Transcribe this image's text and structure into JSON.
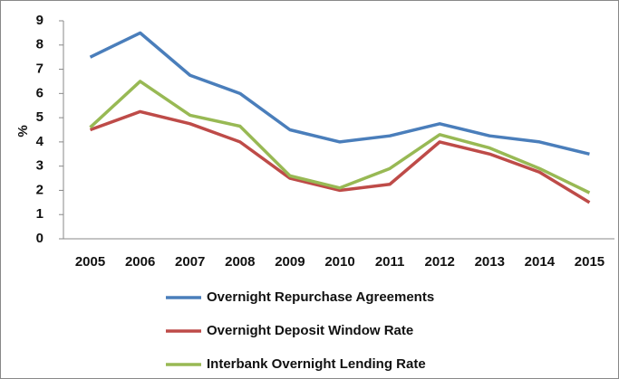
{
  "chart_data": {
    "type": "line",
    "ylabel": "%",
    "categories": [
      "2005",
      "2006",
      "2007",
      "2008",
      "2009",
      "2010",
      "2011",
      "2012",
      "2013",
      "2014",
      "2015"
    ],
    "series": [
      {
        "name": "Overnight Repurchase Agreements",
        "color": "#4a7ebb",
        "values": [
          7.5,
          8.5,
          6.75,
          6.0,
          4.5,
          4.0,
          4.25,
          4.75,
          4.25,
          4.0,
          3.5
        ]
      },
      {
        "name": "Overnight Deposit Window Rate",
        "color": "#be4b48",
        "values": [
          4.5,
          5.25,
          4.75,
          4.0,
          2.5,
          2.0,
          2.25,
          4.0,
          3.5,
          2.75,
          1.5
        ]
      },
      {
        "name": "Interbank Overnight Lending Rate",
        "color": "#98b954",
        "values": [
          4.6,
          6.5,
          5.1,
          4.65,
          2.6,
          2.1,
          2.9,
          4.3,
          3.75,
          2.9,
          1.9
        ]
      }
    ],
    "ylim": [
      0,
      9
    ],
    "yticks": [
      0,
      1,
      2,
      3,
      4,
      5,
      6,
      7,
      8,
      9
    ],
    "grid": false,
    "legend": "bottom"
  }
}
